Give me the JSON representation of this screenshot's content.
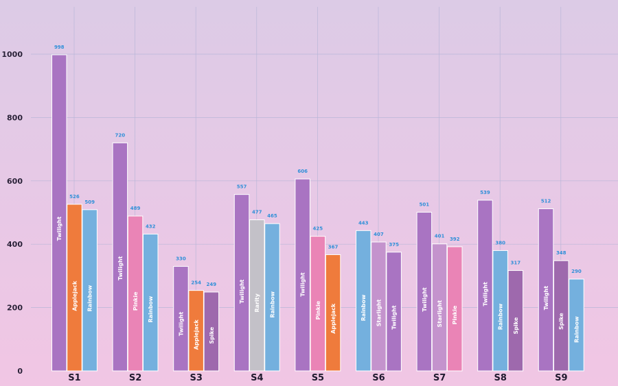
{
  "colors": {
    "Twilight": "#a974c2",
    "Applejack": "#ef7b3c",
    "Rainbow": "#74b0de",
    "Pinkie": "#ea84b6",
    "Rarity": "#c3c1c8",
    "Spike": "#9e69ad",
    "Starlight": "#c493cd"
  },
  "chart_data": {
    "type": "bar",
    "ylim": [
      0,
      1100
    ],
    "yticks": [
      0,
      200,
      400,
      600,
      800,
      1000
    ],
    "grid": true,
    "groups": [
      {
        "label": "S1",
        "bars": [
          {
            "name": "Twilight",
            "value": 998
          },
          {
            "name": "Applejack",
            "value": 526
          },
          {
            "name": "Rainbow",
            "value": 509
          }
        ]
      },
      {
        "label": "S2",
        "bars": [
          {
            "name": "Twilight",
            "value": 720
          },
          {
            "name": "Pinkie",
            "value": 489
          },
          {
            "name": "Rainbow",
            "value": 432
          }
        ]
      },
      {
        "label": "S3",
        "bars": [
          {
            "name": "Twilight",
            "value": 330
          },
          {
            "name": "Applejack",
            "value": 254
          },
          {
            "name": "Spike",
            "value": 249
          }
        ]
      },
      {
        "label": "S4",
        "bars": [
          {
            "name": "Twilight",
            "value": 557
          },
          {
            "name": "Rarity",
            "value": 477
          },
          {
            "name": "Rainbow",
            "value": 465
          }
        ]
      },
      {
        "label": "S5",
        "bars": [
          {
            "name": "Twilight",
            "value": 606
          },
          {
            "name": "Pinkie",
            "value": 425
          },
          {
            "name": "Applejack",
            "value": 367
          }
        ]
      },
      {
        "label": "S6",
        "bars": [
          {
            "name": "Rainbow",
            "value": 443
          },
          {
            "name": "Starlight",
            "value": 407
          },
          {
            "name": "Twilight",
            "value": 375
          }
        ]
      },
      {
        "label": "S7",
        "bars": [
          {
            "name": "Twilight",
            "value": 501
          },
          {
            "name": "Starlight",
            "value": 401
          },
          {
            "name": "Pinkie",
            "value": 392
          }
        ]
      },
      {
        "label": "S8",
        "bars": [
          {
            "name": "Twilight",
            "value": 539
          },
          {
            "name": "Rainbow",
            "value": 380
          },
          {
            "name": "Spike",
            "value": 317
          }
        ]
      },
      {
        "label": "S9",
        "bars": [
          {
            "name": "Twilight",
            "value": 512
          },
          {
            "name": "Spike",
            "value": 348
          },
          {
            "name": "Rainbow",
            "value": 290
          }
        ]
      }
    ]
  }
}
